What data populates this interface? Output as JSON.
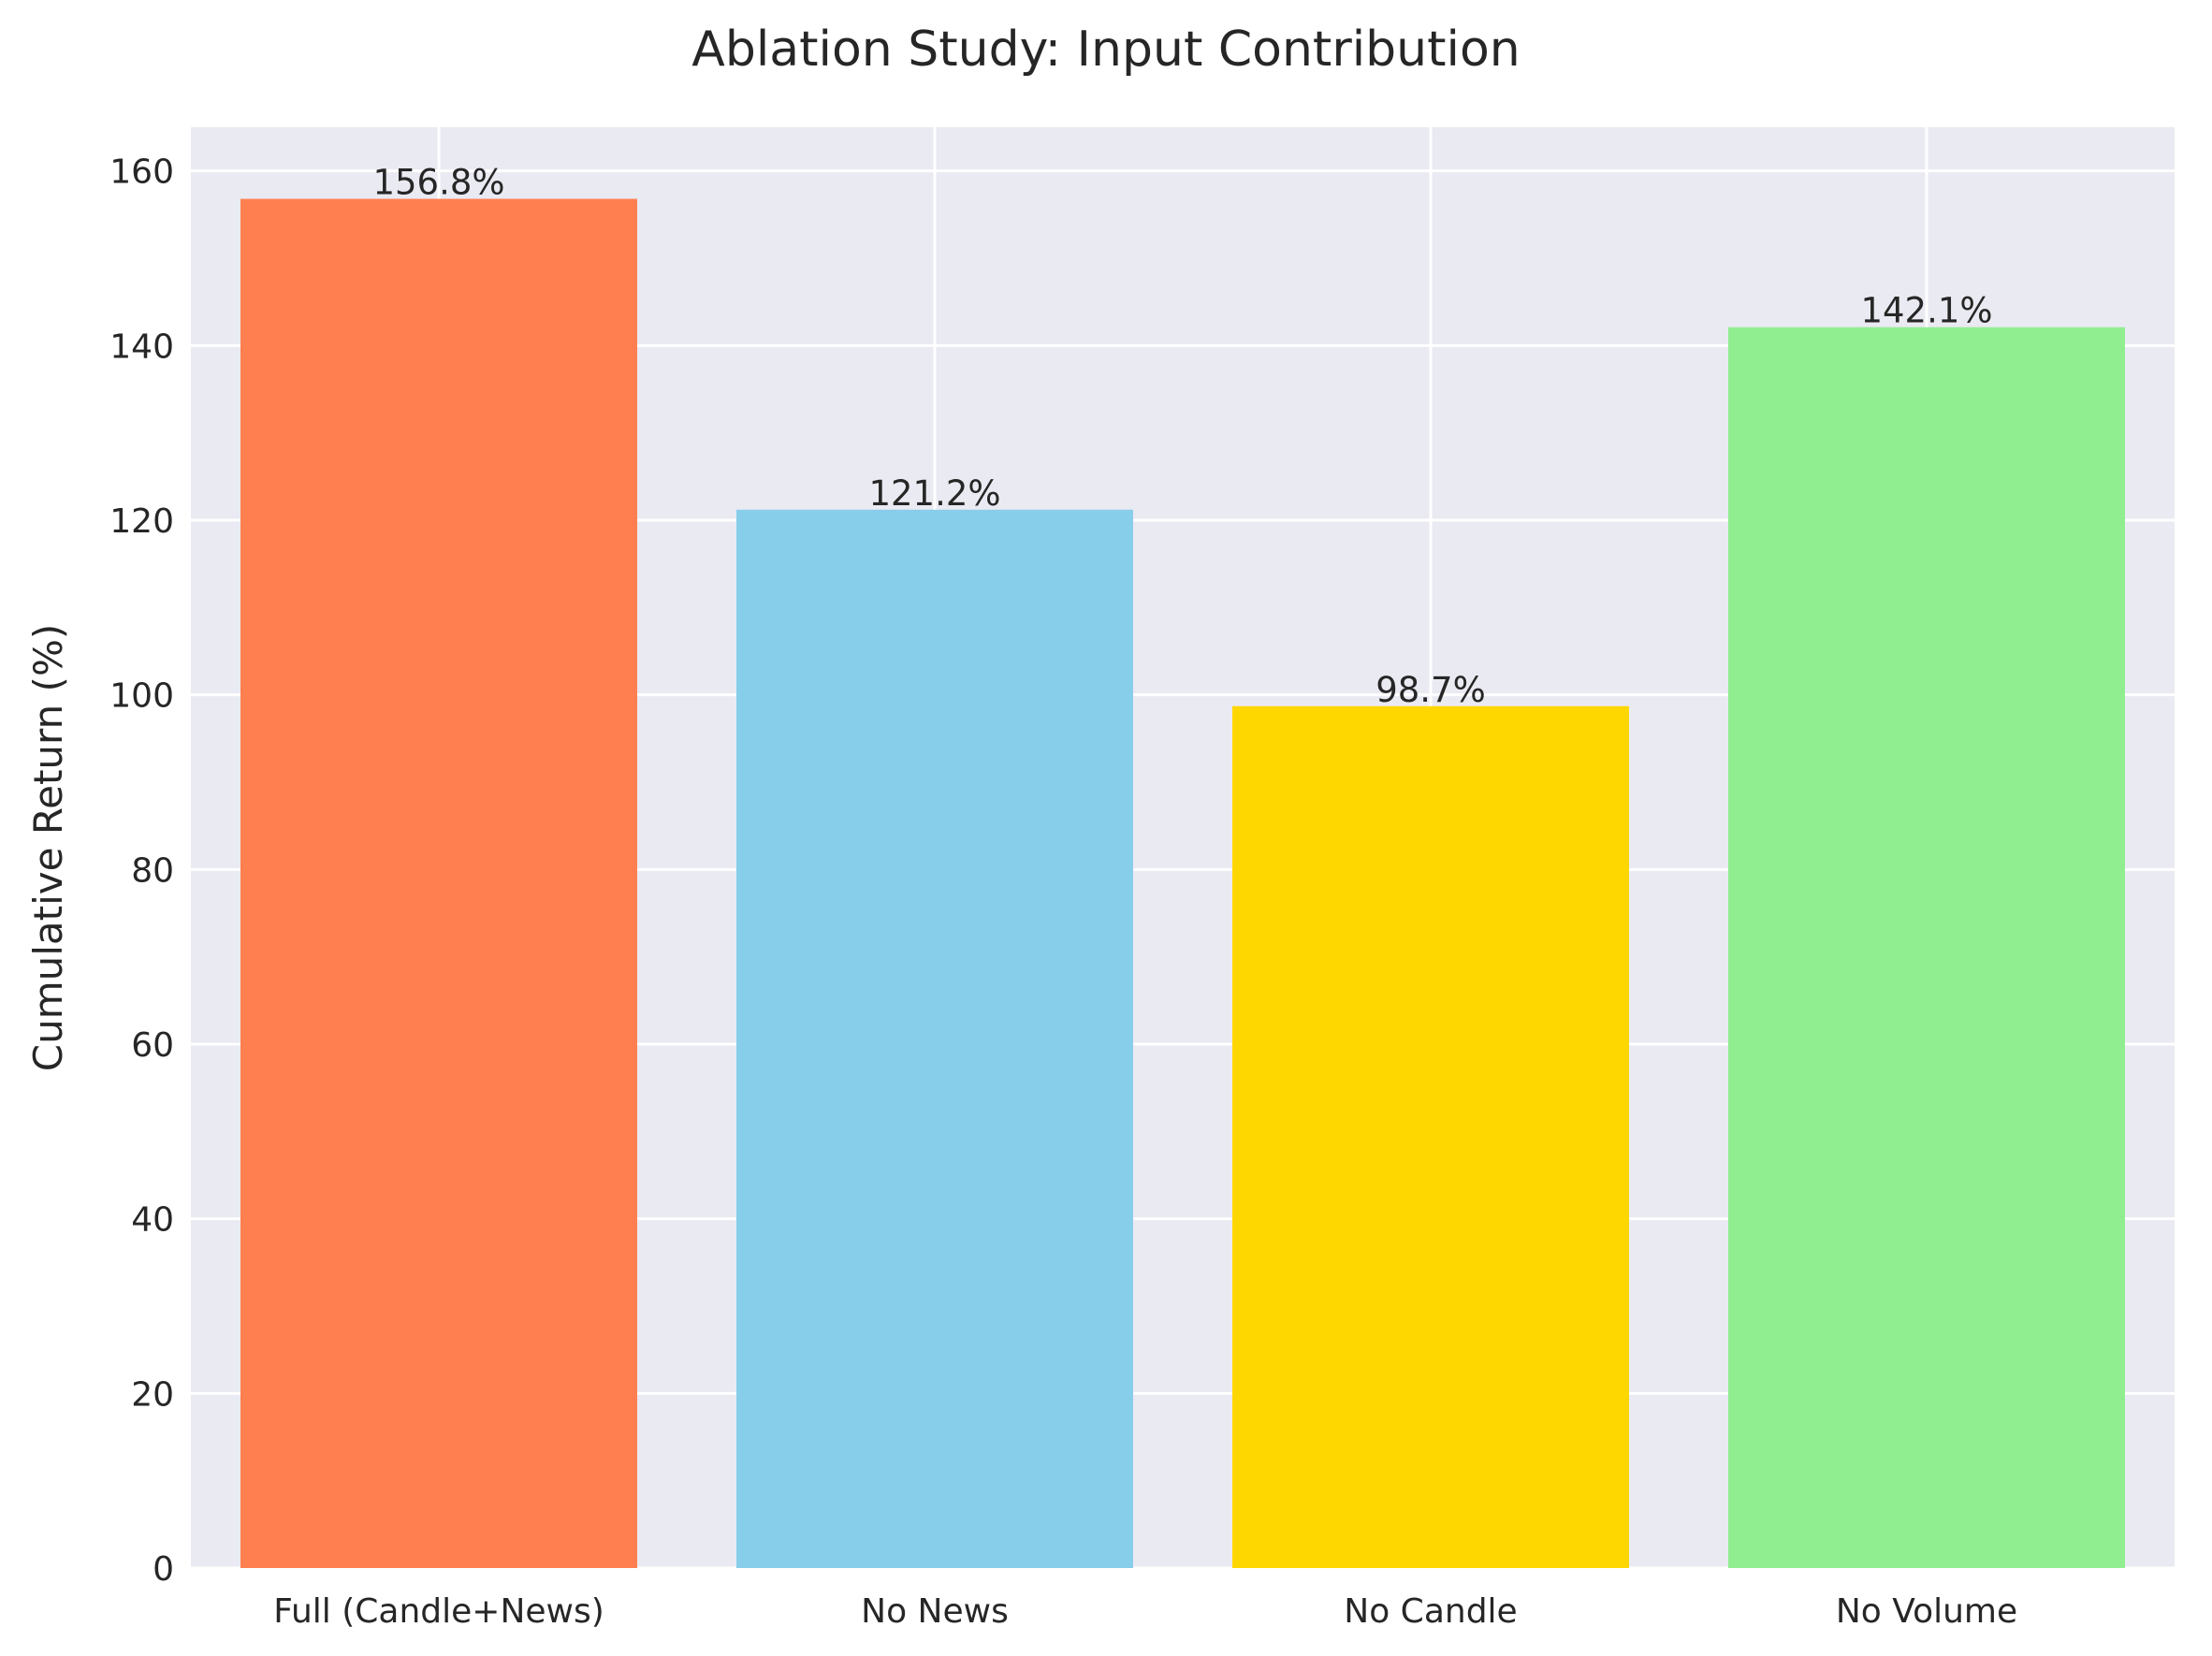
{
  "chart_data": {
    "type": "bar",
    "title": "Ablation Study: Input Contribution",
    "xlabel": "",
    "ylabel": "Cumulative Return (%)",
    "categories": [
      "Full (Candle+News)",
      "No News",
      "No Candle",
      "No Volume"
    ],
    "values": [
      156.8,
      121.2,
      98.7,
      142.1
    ],
    "value_labels": [
      "156.8%",
      "121.2%",
      "98.7%",
      "142.1%"
    ],
    "colors": [
      "#FF7F50",
      "#87CEEB",
      "#FFD700",
      "#90EE90"
    ],
    "ylim": [
      0,
      165
    ],
    "yticks": [
      0,
      20,
      40,
      60,
      80,
      100,
      120,
      140,
      160
    ],
    "grid": true,
    "background": "#EAEAF2",
    "legend": "none"
  }
}
